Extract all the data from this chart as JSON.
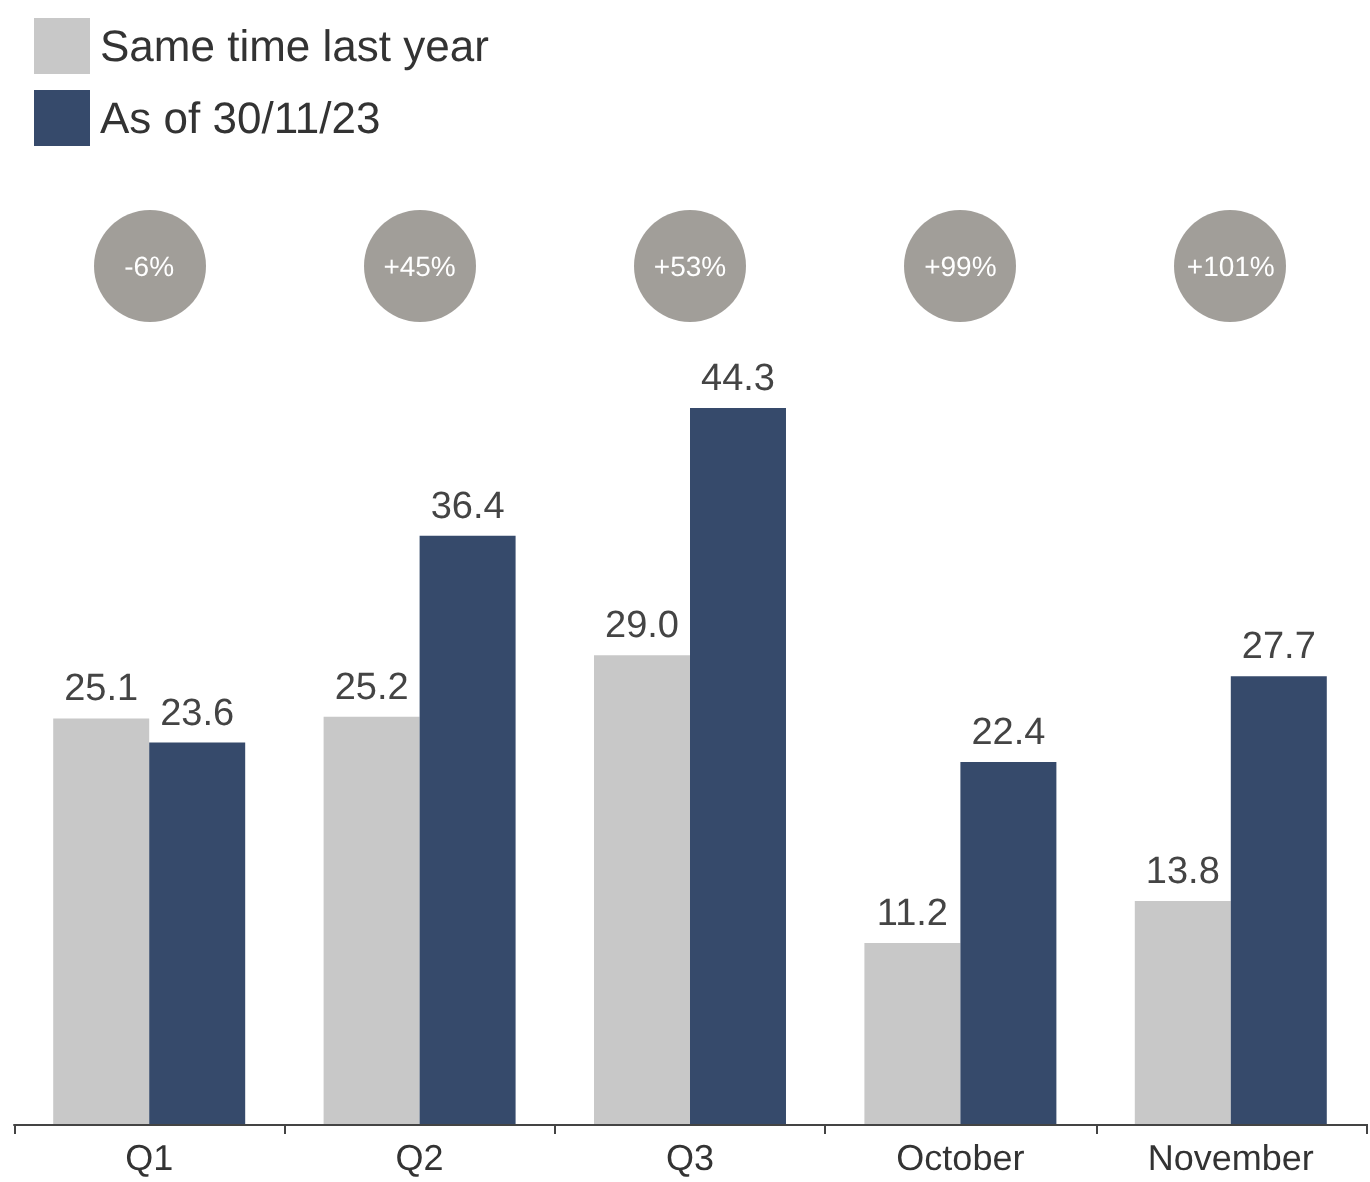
{
  "chart_data": {
    "type": "bar",
    "categories": [
      "Q1",
      "Q2",
      "Q3",
      "October",
      "November"
    ],
    "series": [
      {
        "name": "Same time last year",
        "color": "#c8c8c8",
        "values": [
          25.1,
          25.2,
          29.0,
          11.2,
          13.8
        ],
        "value_labels": [
          "25.1",
          "25.2",
          "29.0",
          "11.2",
          "13.8"
        ]
      },
      {
        "name": "As of 30/11/23",
        "color": "#364a6b",
        "values": [
          23.6,
          36.4,
          44.3,
          22.4,
          27.7
        ],
        "value_labels": [
          "23.6",
          "36.4",
          "44.3",
          "22.4",
          "27.7"
        ]
      }
    ],
    "legend": "top left",
    "annotations": [
      "-6%",
      "+45%",
      "+53%",
      "+99%",
      "+101%"
    ]
  }
}
